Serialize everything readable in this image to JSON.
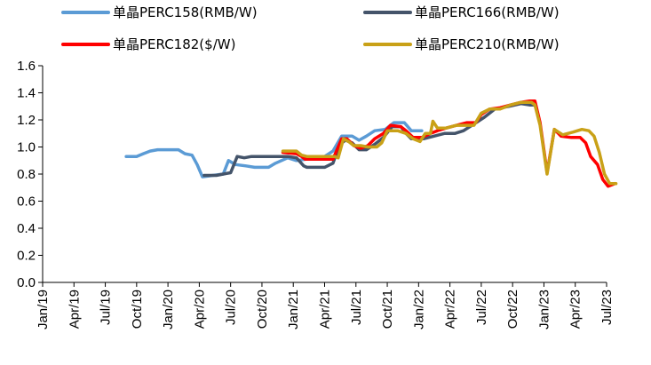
{
  "chart_data": {
    "type": "line",
    "title": "",
    "xlabel": "",
    "ylabel": "",
    "ylim": [
      0,
      1.6
    ],
    "y_ticks": [
      "0.0",
      "0.2",
      "0.4",
      "0.6",
      "0.8",
      "1.0",
      "1.2",
      "1.4",
      "1.6"
    ],
    "x_tick_labels": [
      "Jan/19",
      "Apr/19",
      "Jul/19",
      "Oct/19",
      "Jan/20",
      "Apr/20",
      "Jul/20",
      "Oct/20",
      "Jan/21",
      "Apr/21",
      "Jul/21",
      "Oct/21",
      "Jan/22",
      "Apr/22",
      "Jul/22",
      "Oct/22",
      "Jan/23",
      "Apr/23",
      "Jul/23"
    ],
    "grid": false,
    "legend_position": "top",
    "series": [
      {
        "name": "单晶PERC158(RMB/W)",
        "color": "#5b9bd5",
        "points": [
          [
            "2019-09-01",
            0.93
          ],
          [
            "2019-10-01",
            0.93
          ],
          [
            "2019-10-20",
            0.95
          ],
          [
            "2019-11-10",
            0.97
          ],
          [
            "2019-12-01",
            0.98
          ],
          [
            "2020-01-01",
            0.98
          ],
          [
            "2020-02-01",
            0.98
          ],
          [
            "2020-02-20",
            0.95
          ],
          [
            "2020-03-10",
            0.94
          ],
          [
            "2020-03-25",
            0.87
          ],
          [
            "2020-04-10",
            0.78
          ],
          [
            "2020-05-10",
            0.79
          ],
          [
            "2020-06-10",
            0.8
          ],
          [
            "2020-06-25",
            0.9
          ],
          [
            "2020-07-15",
            0.87
          ],
          [
            "2020-08-15",
            0.86
          ],
          [
            "2020-09-10",
            0.85
          ],
          [
            "2020-10-20",
            0.85
          ],
          [
            "2020-11-10",
            0.88
          ],
          [
            "2020-12-15",
            0.92
          ],
          [
            "2021-01-10",
            0.9
          ],
          [
            "2021-02-10",
            0.91
          ],
          [
            "2021-03-01",
            0.93
          ],
          [
            "2021-04-01",
            0.93
          ],
          [
            "2021-04-25",
            0.97
          ],
          [
            "2021-05-20",
            1.08
          ],
          [
            "2021-06-20",
            1.08
          ],
          [
            "2021-07-10",
            1.05
          ],
          [
            "2021-08-01",
            1.08
          ],
          [
            "2021-08-25",
            1.12
          ],
          [
            "2021-09-25",
            1.13
          ],
          [
            "2021-10-20",
            1.18
          ],
          [
            "2021-11-20",
            1.18
          ],
          [
            "2021-12-10",
            1.12
          ],
          [
            "2022-01-10",
            1.12
          ]
        ]
      },
      {
        "name": "单晶PERC166(RMB/W)",
        "color": "#44546a",
        "points": [
          [
            "2020-04-15",
            0.79
          ],
          [
            "2020-05-20",
            0.79
          ],
          [
            "2020-06-10",
            0.8
          ],
          [
            "2020-07-01",
            0.81
          ],
          [
            "2020-07-20",
            0.93
          ],
          [
            "2020-08-10",
            0.92
          ],
          [
            "2020-09-01",
            0.93
          ],
          [
            "2020-10-01",
            0.93
          ],
          [
            "2020-11-15",
            0.93
          ],
          [
            "2020-12-15",
            0.93
          ],
          [
            "2021-01-10",
            0.92
          ],
          [
            "2021-02-01",
            0.86
          ],
          [
            "2021-02-10",
            0.85
          ],
          [
            "2021-03-01",
            0.85
          ],
          [
            "2021-04-01",
            0.85
          ],
          [
            "2021-04-25",
            0.88
          ],
          [
            "2021-05-15",
            1.02
          ],
          [
            "2021-06-01",
            1.05
          ],
          [
            "2021-06-20",
            1.03
          ],
          [
            "2021-07-10",
            0.98
          ],
          [
            "2021-08-01",
            0.98
          ],
          [
            "2021-08-25",
            1.02
          ],
          [
            "2021-09-20",
            1.07
          ],
          [
            "2021-10-15",
            1.15
          ],
          [
            "2021-11-10",
            1.15
          ],
          [
            "2021-11-25",
            1.1
          ],
          [
            "2021-12-10",
            1.06
          ],
          [
            "2022-01-15",
            1.06
          ],
          [
            "2022-02-15",
            1.08
          ],
          [
            "2022-03-15",
            1.1
          ],
          [
            "2022-04-15",
            1.1
          ],
          [
            "2022-05-10",
            1.12
          ],
          [
            "2022-06-10",
            1.17
          ],
          [
            "2022-07-10",
            1.22
          ],
          [
            "2022-08-10",
            1.28
          ],
          [
            "2022-09-20",
            1.3
          ],
          [
            "2022-10-25",
            1.32
          ],
          [
            "2022-11-20",
            1.31
          ],
          [
            "2022-12-05",
            1.31
          ]
        ]
      },
      {
        "name": "单晶PERC182($/W)",
        "color": "#ff0000",
        "points": [
          [
            "2020-12-01",
            0.96
          ],
          [
            "2021-01-10",
            0.95
          ],
          [
            "2021-01-25",
            0.93
          ],
          [
            "2021-02-05",
            0.91
          ],
          [
            "2021-03-01",
            0.91
          ],
          [
            "2021-04-01",
            0.91
          ],
          [
            "2021-04-25",
            0.91
          ],
          [
            "2021-05-05",
            0.97
          ],
          [
            "2021-05-20",
            1.06
          ],
          [
            "2021-06-05",
            1.06
          ],
          [
            "2021-06-25",
            1.01
          ],
          [
            "2021-07-15",
            0.99
          ],
          [
            "2021-08-05",
            1.01
          ],
          [
            "2021-08-25",
            1.06
          ],
          [
            "2021-09-20",
            1.1
          ],
          [
            "2021-10-10",
            1.16
          ],
          [
            "2021-11-10",
            1.15
          ],
          [
            "2021-11-25",
            1.12
          ],
          [
            "2021-12-15",
            1.07
          ],
          [
            "2022-01-10",
            1.07
          ],
          [
            "2022-02-05",
            1.1
          ],
          [
            "2022-02-25",
            1.12
          ],
          [
            "2022-03-20",
            1.14
          ],
          [
            "2022-04-20",
            1.16
          ],
          [
            "2022-05-20",
            1.18
          ],
          [
            "2022-06-15",
            1.18
          ],
          [
            "2022-07-01",
            1.24
          ],
          [
            "2022-07-25",
            1.28
          ],
          [
            "2022-08-25",
            1.29
          ],
          [
            "2022-09-25",
            1.31
          ],
          [
            "2022-10-25",
            1.33
          ],
          [
            "2022-11-20",
            1.34
          ],
          [
            "2022-12-05",
            1.34
          ],
          [
            "2022-12-20",
            1.18
          ],
          [
            "2023-01-10",
            0.81
          ],
          [
            "2023-02-01",
            1.13
          ],
          [
            "2023-02-20",
            1.08
          ],
          [
            "2023-03-20",
            1.07
          ],
          [
            "2023-04-15",
            1.07
          ],
          [
            "2023-05-01",
            1.03
          ],
          [
            "2023-05-15",
            0.93
          ],
          [
            "2023-06-05",
            0.87
          ],
          [
            "2023-06-20",
            0.76
          ],
          [
            "2023-07-05",
            0.71
          ],
          [
            "2023-07-25",
            0.73
          ]
        ]
      },
      {
        "name": "单晶PERC210(RMB/W)",
        "color": "#c9a117",
        "points": [
          [
            "2020-12-01",
            0.97
          ],
          [
            "2021-01-10",
            0.97
          ],
          [
            "2021-01-25",
            0.94
          ],
          [
            "2021-02-10",
            0.93
          ],
          [
            "2021-03-01",
            0.93
          ],
          [
            "2021-04-01",
            0.93
          ],
          [
            "2021-04-30",
            0.93
          ],
          [
            "2021-05-10",
            0.92
          ],
          [
            "2021-05-25",
            1.06
          ],
          [
            "2021-06-10",
            1.04
          ],
          [
            "2021-06-25",
            1.01
          ],
          [
            "2021-07-15",
            1.01
          ],
          [
            "2021-08-05",
            1.0
          ],
          [
            "2021-09-01",
            1.0
          ],
          [
            "2021-09-15",
            1.03
          ],
          [
            "2021-10-01",
            1.12
          ],
          [
            "2021-11-01",
            1.12
          ],
          [
            "2021-11-25",
            1.1
          ],
          [
            "2021-12-15",
            1.06
          ],
          [
            "2022-01-05",
            1.04
          ],
          [
            "2022-01-20",
            1.1
          ],
          [
            "2022-02-05",
            1.1
          ],
          [
            "2022-02-12",
            1.19
          ],
          [
            "2022-02-25",
            1.14
          ],
          [
            "2022-03-20",
            1.14
          ],
          [
            "2022-04-20",
            1.16
          ],
          [
            "2022-05-20",
            1.16
          ],
          [
            "2022-06-10",
            1.16
          ],
          [
            "2022-07-01",
            1.25
          ],
          [
            "2022-07-25",
            1.28
          ],
          [
            "2022-08-25",
            1.28
          ],
          [
            "2022-09-25",
            1.31
          ],
          [
            "2022-10-25",
            1.33
          ],
          [
            "2022-11-25",
            1.33
          ],
          [
            "2022-12-05",
            1.31
          ],
          [
            "2022-12-20",
            1.16
          ],
          [
            "2023-01-10",
            0.8
          ],
          [
            "2023-02-01",
            1.13
          ],
          [
            "2023-02-25",
            1.09
          ],
          [
            "2023-03-25",
            1.11
          ],
          [
            "2023-04-20",
            1.13
          ],
          [
            "2023-05-10",
            1.12
          ],
          [
            "2023-05-25",
            1.08
          ],
          [
            "2023-06-10",
            0.96
          ],
          [
            "2023-06-25",
            0.8
          ],
          [
            "2023-07-10",
            0.73
          ],
          [
            "2023-07-28",
            0.73
          ]
        ]
      }
    ]
  }
}
